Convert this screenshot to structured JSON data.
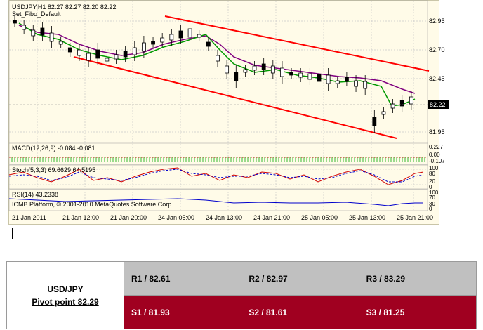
{
  "chart": {
    "header_line1": "USDJPY,H1  82.27 82.27 82.20 82.22",
    "header_line2": "Set_Fibo_Default",
    "price_ticks": [
      "82.95",
      "82.70",
      "82.45",
      "81.95"
    ],
    "current_price": "82.22",
    "macd_label": "MACD(12,26,9) -0.084 -0.081",
    "macd_ticks": [
      "0.227",
      "0.00",
      "-0.107"
    ],
    "stoch_label": "Stoch(5,3,3) 69.6629 64.5195",
    "stoch_ticks": [
      "100",
      "80",
      "20",
      "0"
    ],
    "rsi_label": "RSI(14) 43.2338",
    "rsi_ticks": [
      "100",
      "70",
      "30",
      "0"
    ],
    "copyright": "ICMB Platform, © 2001-2010 MetaQuotes Software Corp.",
    "time_labels": [
      "21 Jan 2011",
      "21 Jan 12:00",
      "21 Jan 20:00",
      "24 Jan 05:00",
      "24 Jan 13:00",
      "24 Jan 21:00",
      "25 Jan 05:00",
      "25 Jan 13:00",
      "25 Jan 21:00"
    ],
    "colors": {
      "background": "#fffbe8",
      "channel": "#ff0000",
      "ma_fast": "#009900",
      "ma_slow": "#800080",
      "stoch_main": "#d00000",
      "stoch_signal": "#0000cc",
      "rsi": "#0000cc"
    }
  },
  "pivot": {
    "pair": "USD/JPY",
    "pivot_text": "Pivot point 82.29",
    "r1": "R1 / 82.61",
    "r2": "R2 / 82.97",
    "r3": "R3 / 83.29",
    "s1": "S1 / 81.93",
    "s2": "S2 / 81.61",
    "s3": "S3 / 81.25",
    "colors": {
      "resistance_bg": "#c0c0c0",
      "support_bg": "#a00020"
    }
  }
}
